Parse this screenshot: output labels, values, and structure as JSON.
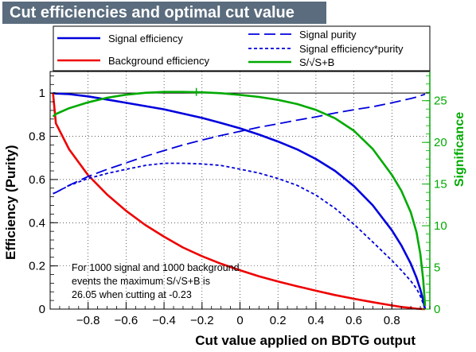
{
  "title": "Cut efficiencies and optimal cut value",
  "chart_data": {
    "type": "line",
    "xlabel": "Cut value applied on BDTG output",
    "ylabel": "Efficiency (Purity)",
    "y2label": "Significance",
    "xlim": [
      -1.0,
      1.0
    ],
    "ylim": [
      0,
      1.1
    ],
    "y2lim": [
      0,
      28.5
    ],
    "grid": true,
    "legend_position": "top",
    "x_ticks": [
      -0.8,
      -0.6,
      -0.4,
      -0.2,
      0,
      0.2,
      0.4,
      0.6,
      0.8
    ],
    "x_tick_labels": [
      "−0.8",
      "−0.6",
      "−0.4",
      "−0.2",
      "0",
      "0.2",
      "0.4",
      "0.6",
      "0.8"
    ],
    "y_ticks": [
      0,
      0.2,
      0.4,
      0.6,
      0.8,
      1
    ],
    "y_tick_labels": [
      "0",
      "0.2",
      "0.4",
      "0.6",
      "0.8",
      "1"
    ],
    "y2_ticks": [
      0,
      5,
      10,
      15,
      20,
      25
    ],
    "y2_tick_labels": [
      "0",
      "5",
      "10",
      "15",
      "20",
      "25"
    ],
    "reference_line_y": 1.0,
    "x": [
      -0.985,
      -0.97,
      -0.9,
      -0.8,
      -0.7,
      -0.6,
      -0.5,
      -0.4,
      -0.3,
      -0.2,
      -0.1,
      0,
      0.1,
      0.2,
      0.3,
      0.4,
      0.5,
      0.6,
      0.7,
      0.8,
      0.85,
      0.9,
      0.93,
      0.95,
      0.965,
      0.975
    ],
    "series": [
      {
        "name": "Signal efficiency",
        "axis": "left",
        "color": "#0000dd",
        "dash": "solid",
        "values": [
          1.0,
          0.998,
          0.995,
          0.985,
          0.97,
          0.955,
          0.94,
          0.925,
          0.905,
          0.885,
          0.862,
          0.837,
          0.808,
          0.776,
          0.74,
          0.695,
          0.64,
          0.57,
          0.48,
          0.365,
          0.295,
          0.21,
          0.145,
          0.09,
          0.04,
          0.0
        ]
      },
      {
        "name": "Background efficiency",
        "axis": "left",
        "color": "#ee0000",
        "dash": "solid",
        "values": [
          1.0,
          0.86,
          0.74,
          0.62,
          0.53,
          0.455,
          0.39,
          0.335,
          0.285,
          0.245,
          0.21,
          0.18,
          0.152,
          0.128,
          0.106,
          0.085,
          0.065,
          0.048,
          0.032,
          0.017,
          0.01,
          0.005,
          0.002,
          0.001,
          0.0,
          0.0
        ]
      },
      {
        "name": "Signal purity",
        "axis": "left",
        "color": "#0000dd",
        "dash": "long",
        "values": [
          0.535,
          0.54,
          0.573,
          0.614,
          0.647,
          0.677,
          0.707,
          0.734,
          0.76,
          0.783,
          0.804,
          0.823,
          0.842,
          0.858,
          0.875,
          0.89,
          0.908,
          0.923,
          0.937,
          0.955,
          0.965,
          0.975,
          0.982,
          0.988,
          0.992,
          0.995
        ]
      },
      {
        "name": "Signal efficiency*purity",
        "axis": "left",
        "color": "#0000dd",
        "dash": "short",
        "values": [
          0.535,
          0.54,
          0.572,
          0.605,
          0.628,
          0.647,
          0.665,
          0.675,
          0.675,
          0.672,
          0.665,
          0.648,
          0.63,
          0.605,
          0.573,
          0.528,
          0.467,
          0.393,
          0.31,
          0.225,
          0.18,
          0.13,
          0.095,
          0.06,
          0.025,
          0.0
        ]
      },
      {
        "name": "S/√S+B",
        "axis": "right",
        "color": "#00aa00",
        "dash": "solid",
        "values": [
          23.1,
          23.4,
          24.1,
          24.8,
          25.35,
          25.72,
          25.95,
          26.05,
          26.05,
          26.0,
          25.9,
          25.7,
          25.45,
          25.1,
          24.6,
          23.9,
          22.9,
          21.4,
          19.2,
          16.1,
          14.2,
          11.6,
          9.2,
          6.6,
          3.5,
          0.4
        ]
      }
    ],
    "annotation_lines": [
      "For 1000 signal and 1000 background",
      "events the maximum S/√S+B is",
      "26.05 when cutting at -0.23"
    ]
  }
}
